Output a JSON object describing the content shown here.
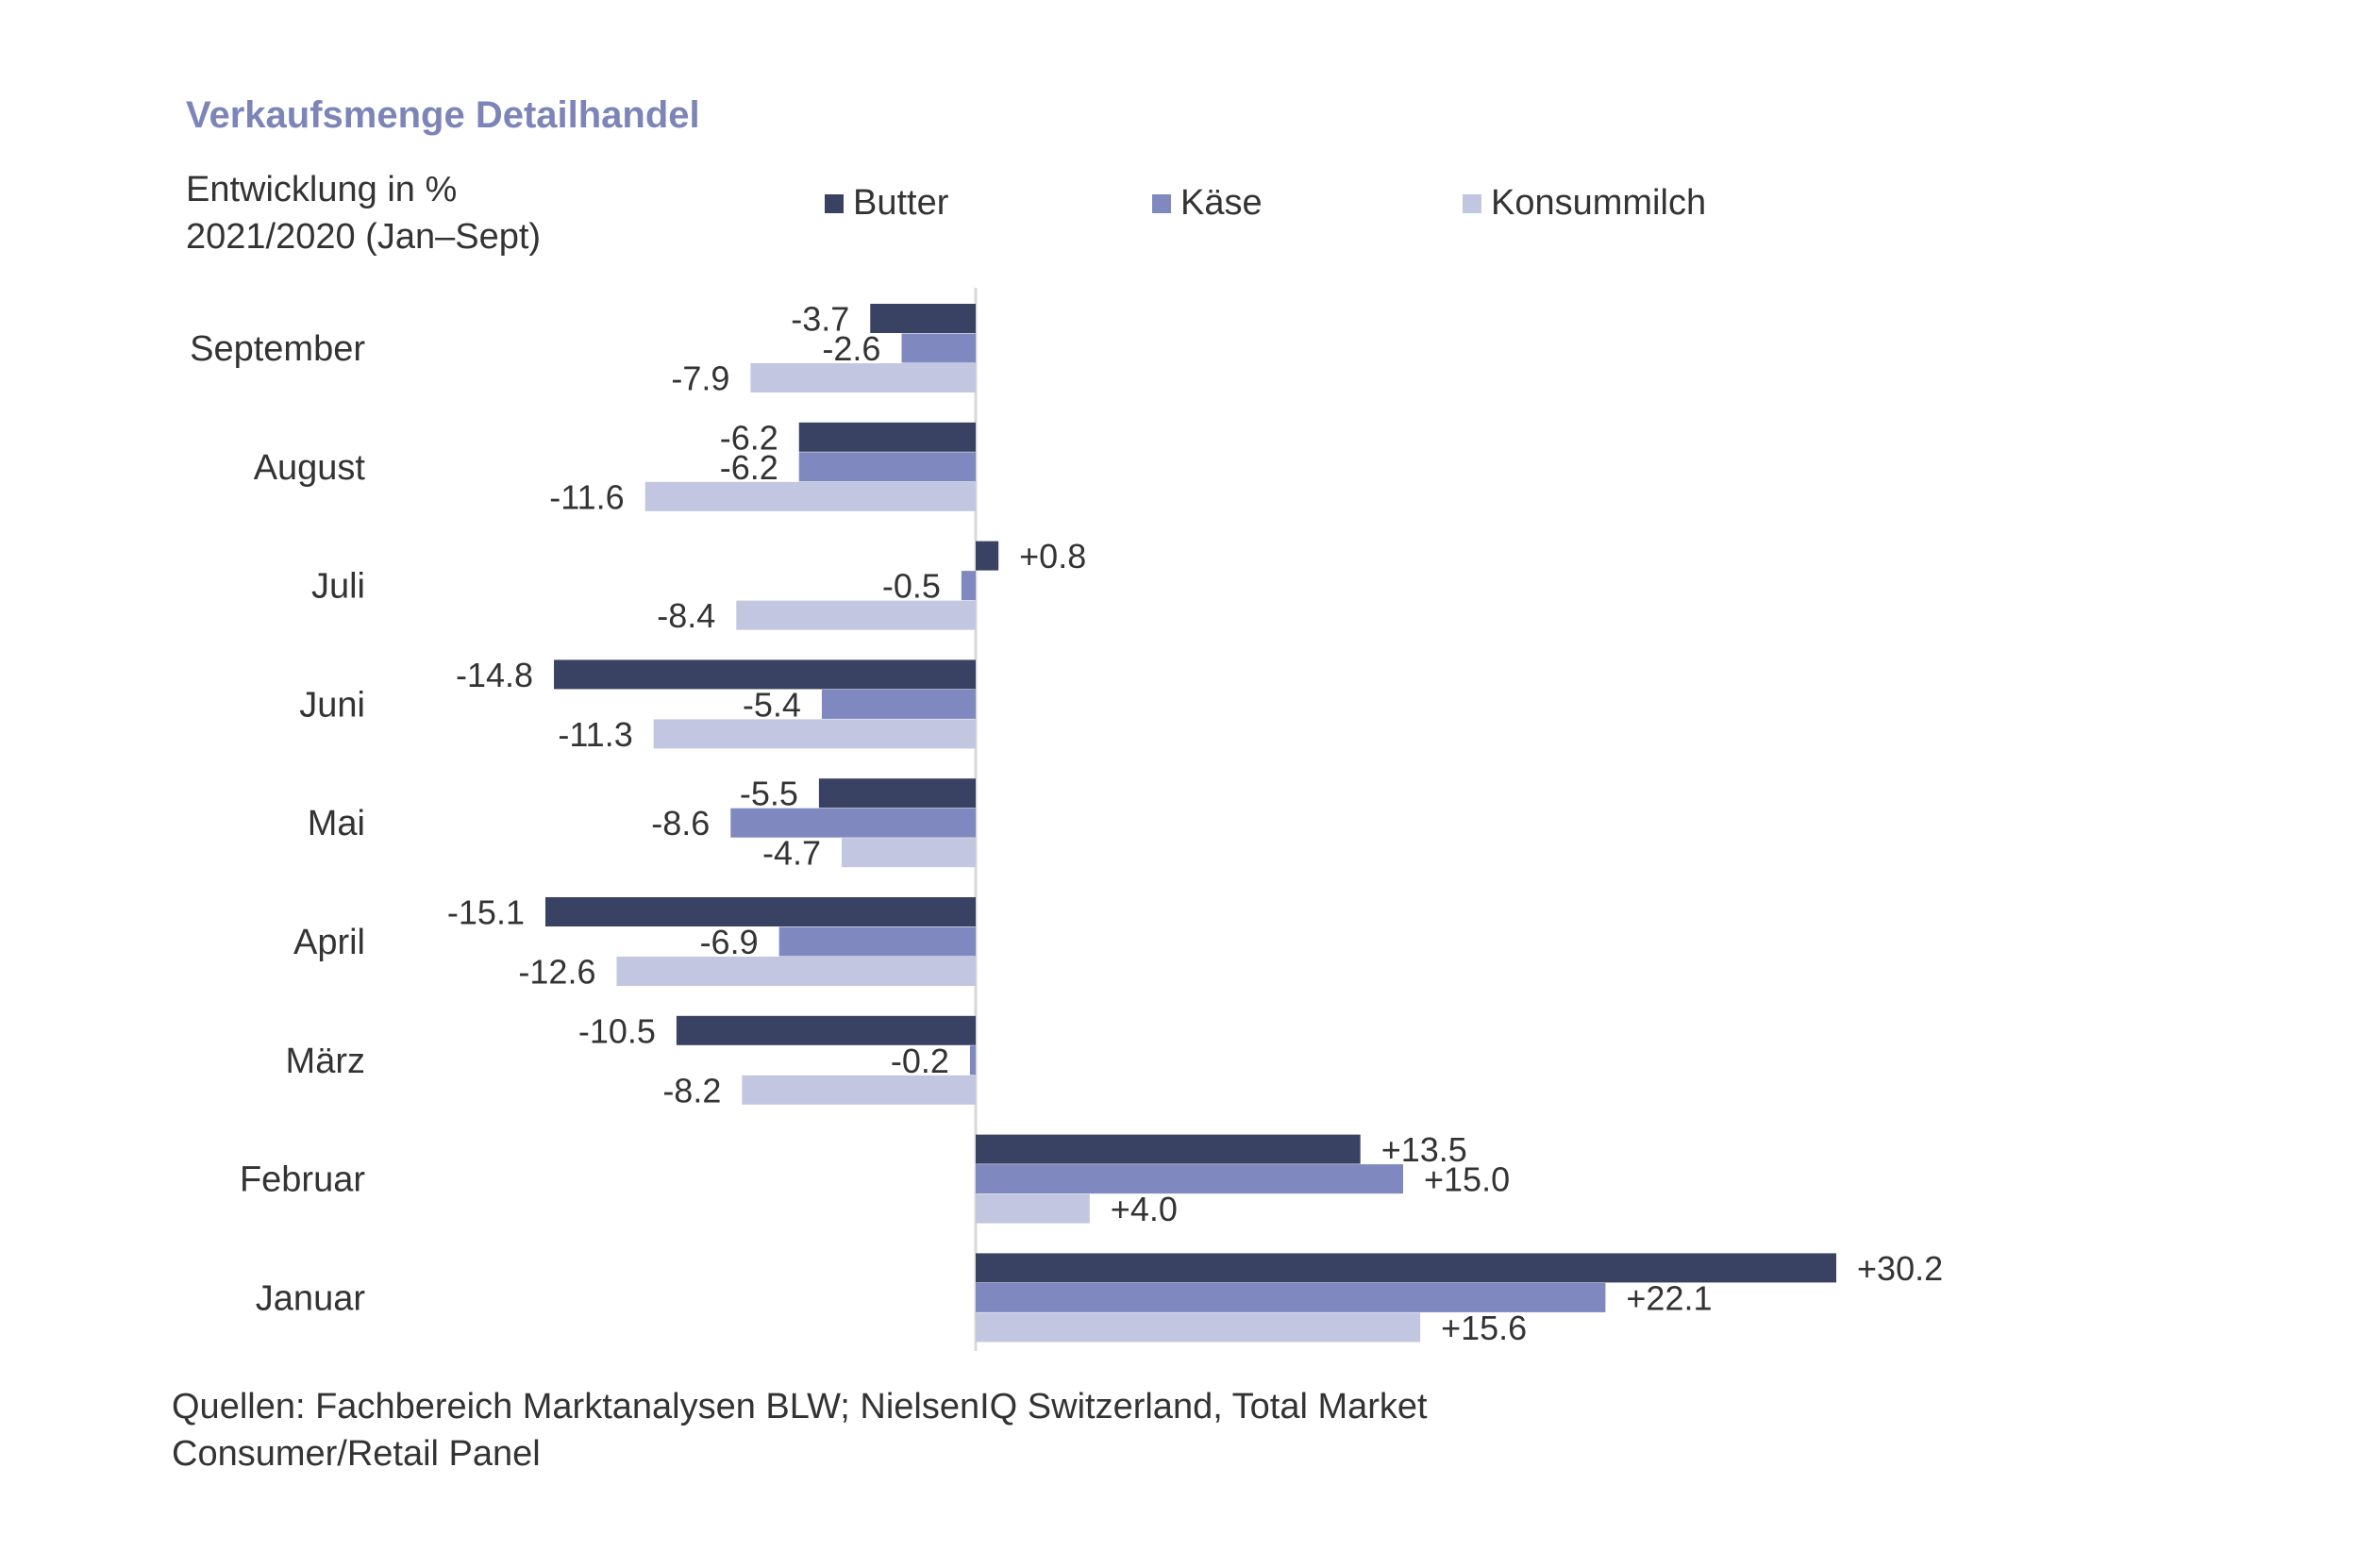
{
  "chart_data": {
    "type": "bar",
    "orientation": "horizontal",
    "title": "Verkaufsmenge  Detailhandel",
    "subtitle_lines": [
      "Entwicklung in %",
      "2021/2020  (Jan–Sept)"
    ],
    "categories": [
      "September",
      "August",
      "Juli",
      "Juni",
      "Mai",
      "April",
      "März",
      "Februar",
      "Januar"
    ],
    "series": [
      {
        "name": "Butter",
        "color": "#3a4263",
        "values": [
          -3.7,
          -6.2,
          0.8,
          -14.8,
          -5.5,
          -15.1,
          -10.5,
          13.5,
          30.2
        ],
        "labels": [
          "-3.7",
          "-6.2",
          "+0.8",
          "-14.8",
          "-5.5",
          "-15.1",
          "-10.5",
          "+13.5",
          "+30.2"
        ]
      },
      {
        "name": "Käse",
        "color": "#8089bf",
        "values": [
          -2.6,
          -6.2,
          -0.5,
          -5.4,
          -8.6,
          -6.9,
          -0.2,
          15.0,
          22.1
        ],
        "labels": [
          "-2.6",
          "-6.2",
          "-0.5",
          "-5.4",
          "-8.6",
          "-6.9",
          "-0.2",
          "+15.0",
          "+22.1"
        ]
      },
      {
        "name": "Konsummilch",
        "color": "#c2c6e1",
        "values": [
          -7.9,
          -11.6,
          -8.4,
          -11.3,
          -4.7,
          -12.6,
          -8.2,
          4.0,
          15.6
        ],
        "labels": [
          "-7.9",
          "-11.6",
          "-8.4",
          "-11.3",
          "-4.7",
          "-12.6",
          "-8.2",
          "+4.0",
          "+15.6"
        ]
      }
    ],
    "xlim": [
      -15.1,
      30.2
    ],
    "legend_position": "top",
    "source_lines": [
      "Quellen: Fachbereich Marktanalysen BLW; NielsenIQ Switzerland, Total Market",
      "Consumer/Retail Panel"
    ]
  }
}
